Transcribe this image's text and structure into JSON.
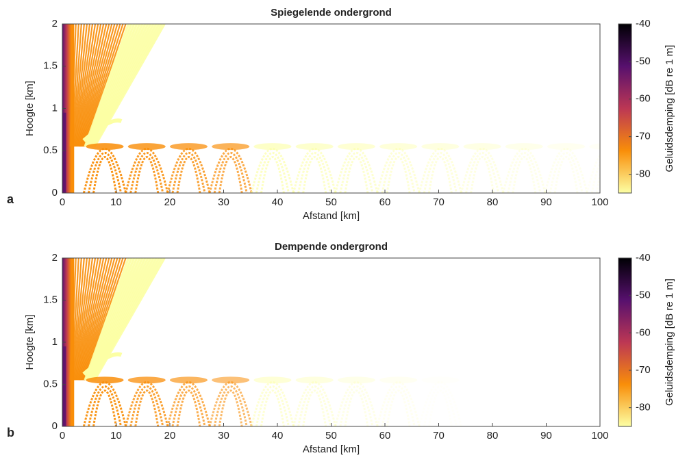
{
  "chart_data": [
    {
      "type": "heatmap",
      "title": "Spiegelende ondergrond",
      "panel_label": "a",
      "x_label": "Afstand [km]",
      "y_label": "Hoogte [km]",
      "xlim": [
        0,
        100
      ],
      "xticks": [
        0,
        10,
        20,
        30,
        40,
        50,
        60,
        70,
        80,
        90,
        100
      ],
      "ylim": [
        0,
        2
      ],
      "yticks": [
        0,
        0.5,
        1,
        1.5,
        2
      ],
      "colorbar": {
        "label": "Geluidsdemping [dB re 1 m]",
        "lim": [
          -85,
          -40
        ],
        "ticks": [
          -80,
          -70,
          -60,
          -50,
          -40
        ],
        "colormap": [
          "#fcffa4",
          "#f98e09",
          "#bc3754",
          "#57106e",
          "#000004"
        ]
      }
    },
    {
      "type": "heatmap",
      "title": "Dempende ondergrond",
      "panel_label": "b",
      "x_label": "Afstand [km]",
      "y_label": "Hoogte [km]",
      "xlim": [
        0,
        100
      ],
      "xticks": [
        0,
        10,
        20,
        30,
        40,
        50,
        60,
        70,
        80,
        90,
        100
      ],
      "ylim": [
        0,
        2
      ],
      "yticks": [
        0,
        0.5,
        1,
        1.5,
        2
      ],
      "colorbar": {
        "label": "Geluidsdemping [dB re 1 m]",
        "lim": [
          -85,
          -40
        ],
        "ticks": [
          -80,
          -70,
          -60,
          -50,
          -40
        ],
        "colormap": [
          "#fcffa4",
          "#f98e09",
          "#bc3754",
          "#57106e",
          "#000004"
        ]
      }
    }
  ]
}
